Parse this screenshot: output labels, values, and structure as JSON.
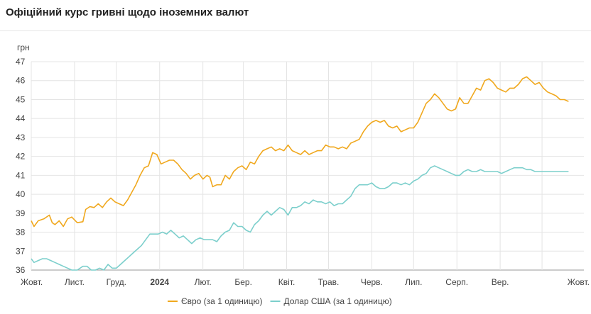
{
  "title": "Офіційний курс гривні щодо іноземних валют",
  "chart_data": {
    "type": "line",
    "ylabel": "грн",
    "ylim": [
      36,
      47
    ],
    "yticks": [
      36,
      37,
      38,
      39,
      40,
      41,
      42,
      43,
      44,
      45,
      46,
      47
    ],
    "xlim": [
      "2023-10-01",
      "2024-10-31"
    ],
    "xticks": [
      {
        "label": "Жовт.",
        "date": "2023-10-01",
        "bold": false
      },
      {
        "label": "Лист.",
        "date": "2023-11-01",
        "bold": false
      },
      {
        "label": "Груд.",
        "date": "2023-12-01",
        "bold": false
      },
      {
        "label": "2024",
        "date": "2024-01-01",
        "bold": true
      },
      {
        "label": "Лют.",
        "date": "2024-02-01",
        "bold": false
      },
      {
        "label": "Бер.",
        "date": "2024-03-01",
        "bold": false
      },
      {
        "label": "Квіт.",
        "date": "2024-04-01",
        "bold": false
      },
      {
        "label": "Трав.",
        "date": "2024-05-01",
        "bold": false
      },
      {
        "label": "Черв.",
        "date": "2024-06-01",
        "bold": false
      },
      {
        "label": "Лип.",
        "date": "2024-07-01",
        "bold": false
      },
      {
        "label": "Серп.",
        "date": "2024-08-01",
        "bold": false
      },
      {
        "label": "Вер.",
        "date": "2024-09-01",
        "bold": false
      },
      {
        "label": "Жовт.",
        "date": "2024-10-01",
        "bold": false
      }
    ],
    "grid": true,
    "legend_position": "bottom",
    "series": [
      {
        "name": "Євро (за 1 одиницю)",
        "color": "#f0a81e",
        "points": [
          [
            "2023-10-01",
            38.6
          ],
          [
            "2023-10-03",
            38.3
          ],
          [
            "2023-10-06",
            38.6
          ],
          [
            "2023-10-10",
            38.7
          ],
          [
            "2023-10-14",
            38.9
          ],
          [
            "2023-10-16",
            38.5
          ],
          [
            "2023-10-18",
            38.4
          ],
          [
            "2023-10-21",
            38.6
          ],
          [
            "2023-10-24",
            38.3
          ],
          [
            "2023-10-27",
            38.7
          ],
          [
            "2023-10-30",
            38.8
          ],
          [
            "2023-11-03",
            38.5
          ],
          [
            "2023-11-07",
            38.55
          ],
          [
            "2023-11-09",
            39.2
          ],
          [
            "2023-11-12",
            39.35
          ],
          [
            "2023-11-15",
            39.3
          ],
          [
            "2023-11-18",
            39.5
          ],
          [
            "2023-11-21",
            39.3
          ],
          [
            "2023-11-24",
            39.6
          ],
          [
            "2023-11-27",
            39.8
          ],
          [
            "2023-11-30",
            39.6
          ],
          [
            "2023-12-03",
            39.5
          ],
          [
            "2023-12-06",
            39.4
          ],
          [
            "2023-12-09",
            39.7
          ],
          [
            "2023-12-12",
            40.1
          ],
          [
            "2023-12-15",
            40.5
          ],
          [
            "2023-12-18",
            41.0
          ],
          [
            "2023-12-21",
            41.4
          ],
          [
            "2023-12-24",
            41.5
          ],
          [
            "2023-12-27",
            42.2
          ],
          [
            "2023-12-30",
            42.1
          ],
          [
            "2024-01-02",
            41.6
          ],
          [
            "2024-01-05",
            41.7
          ],
          [
            "2024-01-08",
            41.8
          ],
          [
            "2024-01-11",
            41.8
          ],
          [
            "2024-01-14",
            41.6
          ],
          [
            "2024-01-17",
            41.3
          ],
          [
            "2024-01-20",
            41.1
          ],
          [
            "2024-01-23",
            40.8
          ],
          [
            "2024-01-26",
            41.0
          ],
          [
            "2024-01-29",
            41.1
          ],
          [
            "2024-02-01",
            40.8
          ],
          [
            "2024-02-04",
            41.0
          ],
          [
            "2024-02-06",
            40.9
          ],
          [
            "2024-02-08",
            40.4
          ],
          [
            "2024-02-11",
            40.5
          ],
          [
            "2024-02-14",
            40.5
          ],
          [
            "2024-02-17",
            41.0
          ],
          [
            "2024-02-20",
            40.8
          ],
          [
            "2024-02-23",
            41.2
          ],
          [
            "2024-02-26",
            41.4
          ],
          [
            "2024-02-29",
            41.5
          ],
          [
            "2024-03-03",
            41.3
          ],
          [
            "2024-03-06",
            41.7
          ],
          [
            "2024-03-09",
            41.6
          ],
          [
            "2024-03-12",
            42.0
          ],
          [
            "2024-03-15",
            42.3
          ],
          [
            "2024-03-18",
            42.4
          ],
          [
            "2024-03-21",
            42.5
          ],
          [
            "2024-03-24",
            42.3
          ],
          [
            "2024-03-27",
            42.4
          ],
          [
            "2024-03-30",
            42.3
          ],
          [
            "2024-04-02",
            42.6
          ],
          [
            "2024-04-05",
            42.3
          ],
          [
            "2024-04-08",
            42.2
          ],
          [
            "2024-04-11",
            42.1
          ],
          [
            "2024-04-14",
            42.3
          ],
          [
            "2024-04-17",
            42.1
          ],
          [
            "2024-04-20",
            42.2
          ],
          [
            "2024-04-23",
            42.3
          ],
          [
            "2024-04-26",
            42.3
          ],
          [
            "2024-04-29",
            42.6
          ],
          [
            "2024-05-02",
            42.5
          ],
          [
            "2024-05-05",
            42.5
          ],
          [
            "2024-05-08",
            42.4
          ],
          [
            "2024-05-11",
            42.5
          ],
          [
            "2024-05-14",
            42.4
          ],
          [
            "2024-05-17",
            42.7
          ],
          [
            "2024-05-20",
            42.8
          ],
          [
            "2024-05-23",
            42.9
          ],
          [
            "2024-05-26",
            43.3
          ],
          [
            "2024-05-29",
            43.6
          ],
          [
            "2024-06-01",
            43.8
          ],
          [
            "2024-06-04",
            43.9
          ],
          [
            "2024-06-07",
            43.8
          ],
          [
            "2024-06-10",
            43.9
          ],
          [
            "2024-06-13",
            43.6
          ],
          [
            "2024-06-16",
            43.5
          ],
          [
            "2024-06-19",
            43.6
          ],
          [
            "2024-06-22",
            43.3
          ],
          [
            "2024-06-25",
            43.4
          ],
          [
            "2024-06-28",
            43.5
          ],
          [
            "2024-07-01",
            43.5
          ],
          [
            "2024-07-04",
            43.8
          ],
          [
            "2024-07-07",
            44.3
          ],
          [
            "2024-07-10",
            44.8
          ],
          [
            "2024-07-13",
            45.0
          ],
          [
            "2024-07-16",
            45.3
          ],
          [
            "2024-07-19",
            45.1
          ],
          [
            "2024-07-22",
            44.8
          ],
          [
            "2024-07-25",
            44.5
          ],
          [
            "2024-07-28",
            44.4
          ],
          [
            "2024-07-31",
            44.5
          ],
          [
            "2024-08-03",
            45.1
          ],
          [
            "2024-08-06",
            44.8
          ],
          [
            "2024-08-09",
            44.8
          ],
          [
            "2024-08-12",
            45.2
          ],
          [
            "2024-08-15",
            45.6
          ],
          [
            "2024-08-18",
            45.5
          ],
          [
            "2024-08-21",
            46.0
          ],
          [
            "2024-08-24",
            46.1
          ],
          [
            "2024-08-27",
            45.9
          ],
          [
            "2024-08-30",
            45.6
          ],
          [
            "2024-09-02",
            45.5
          ],
          [
            "2024-09-05",
            45.4
          ],
          [
            "2024-09-08",
            45.6
          ],
          [
            "2024-09-11",
            45.6
          ],
          [
            "2024-09-14",
            45.8
          ],
          [
            "2024-09-17",
            46.1
          ],
          [
            "2024-09-20",
            46.2
          ],
          [
            "2024-09-23",
            46.0
          ],
          [
            "2024-09-26",
            45.8
          ],
          [
            "2024-09-29",
            45.9
          ],
          [
            "2024-10-02",
            45.6
          ],
          [
            "2024-10-05",
            45.4
          ],
          [
            "2024-10-08",
            45.3
          ],
          [
            "2024-10-11",
            45.2
          ],
          [
            "2024-10-14",
            45.0
          ],
          [
            "2024-10-17",
            45.0
          ],
          [
            "2024-10-20",
            44.9
          ]
        ]
      },
      {
        "name": "Долар США (за 1 одиницю)",
        "color": "#7ccfcc",
        "points": [
          [
            "2023-10-01",
            36.6
          ],
          [
            "2023-10-03",
            36.4
          ],
          [
            "2023-10-06",
            36.5
          ],
          [
            "2023-10-09",
            36.6
          ],
          [
            "2023-10-12",
            36.6
          ],
          [
            "2023-10-15",
            36.5
          ],
          [
            "2023-10-18",
            36.4
          ],
          [
            "2023-10-21",
            36.3
          ],
          [
            "2023-10-24",
            36.2
          ],
          [
            "2023-10-27",
            36.1
          ],
          [
            "2023-10-30",
            36.0
          ],
          [
            "2023-11-03",
            36.0
          ],
          [
            "2023-11-07",
            36.2
          ],
          [
            "2023-11-10",
            36.2
          ],
          [
            "2023-11-13",
            36.0
          ],
          [
            "2023-11-16",
            36.0
          ],
          [
            "2023-11-19",
            36.1
          ],
          [
            "2023-11-22",
            36.0
          ],
          [
            "2023-11-25",
            36.3
          ],
          [
            "2023-11-28",
            36.1
          ],
          [
            "2023-12-01",
            36.1
          ],
          [
            "2023-12-04",
            36.3
          ],
          [
            "2023-12-07",
            36.5
          ],
          [
            "2023-12-10",
            36.7
          ],
          [
            "2023-12-13",
            36.9
          ],
          [
            "2023-12-16",
            37.1
          ],
          [
            "2023-12-19",
            37.3
          ],
          [
            "2023-12-22",
            37.6
          ],
          [
            "2023-12-25",
            37.9
          ],
          [
            "2023-12-28",
            37.9
          ],
          [
            "2023-12-31",
            37.9
          ],
          [
            "2024-01-03",
            38.0
          ],
          [
            "2024-01-06",
            37.9
          ],
          [
            "2024-01-09",
            38.1
          ],
          [
            "2024-01-12",
            37.9
          ],
          [
            "2024-01-15",
            37.7
          ],
          [
            "2024-01-18",
            37.8
          ],
          [
            "2024-01-21",
            37.6
          ],
          [
            "2024-01-24",
            37.4
          ],
          [
            "2024-01-27",
            37.6
          ],
          [
            "2024-01-30",
            37.7
          ],
          [
            "2024-02-02",
            37.6
          ],
          [
            "2024-02-05",
            37.6
          ],
          [
            "2024-02-08",
            37.6
          ],
          [
            "2024-02-11",
            37.5
          ],
          [
            "2024-02-14",
            37.8
          ],
          [
            "2024-02-17",
            38.0
          ],
          [
            "2024-02-20",
            38.1
          ],
          [
            "2024-02-23",
            38.5
          ],
          [
            "2024-02-26",
            38.3
          ],
          [
            "2024-02-29",
            38.3
          ],
          [
            "2024-03-03",
            38.1
          ],
          [
            "2024-03-06",
            38.0
          ],
          [
            "2024-03-09",
            38.4
          ],
          [
            "2024-03-12",
            38.6
          ],
          [
            "2024-03-15",
            38.9
          ],
          [
            "2024-03-18",
            39.1
          ],
          [
            "2024-03-21",
            38.9
          ],
          [
            "2024-03-24",
            39.1
          ],
          [
            "2024-03-27",
            39.3
          ],
          [
            "2024-03-30",
            39.2
          ],
          [
            "2024-04-02",
            38.9
          ],
          [
            "2024-04-05",
            39.3
          ],
          [
            "2024-04-08",
            39.3
          ],
          [
            "2024-04-11",
            39.4
          ],
          [
            "2024-04-14",
            39.6
          ],
          [
            "2024-04-17",
            39.5
          ],
          [
            "2024-04-20",
            39.7
          ],
          [
            "2024-04-23",
            39.6
          ],
          [
            "2024-04-26",
            39.6
          ],
          [
            "2024-04-29",
            39.5
          ],
          [
            "2024-05-02",
            39.6
          ],
          [
            "2024-05-05",
            39.4
          ],
          [
            "2024-05-08",
            39.5
          ],
          [
            "2024-05-11",
            39.5
          ],
          [
            "2024-05-14",
            39.7
          ],
          [
            "2024-05-17",
            39.9
          ],
          [
            "2024-05-20",
            40.3
          ],
          [
            "2024-05-23",
            40.5
          ],
          [
            "2024-05-26",
            40.5
          ],
          [
            "2024-05-29",
            40.5
          ],
          [
            "2024-06-01",
            40.6
          ],
          [
            "2024-06-04",
            40.4
          ],
          [
            "2024-06-07",
            40.3
          ],
          [
            "2024-06-10",
            40.3
          ],
          [
            "2024-06-13",
            40.4
          ],
          [
            "2024-06-16",
            40.6
          ],
          [
            "2024-06-19",
            40.6
          ],
          [
            "2024-06-22",
            40.5
          ],
          [
            "2024-06-25",
            40.6
          ],
          [
            "2024-06-28",
            40.5
          ],
          [
            "2024-07-01",
            40.7
          ],
          [
            "2024-07-04",
            40.8
          ],
          [
            "2024-07-07",
            41.0
          ],
          [
            "2024-07-10",
            41.1
          ],
          [
            "2024-07-13",
            41.4
          ],
          [
            "2024-07-16",
            41.5
          ],
          [
            "2024-07-19",
            41.4
          ],
          [
            "2024-07-22",
            41.3
          ],
          [
            "2024-07-25",
            41.2
          ],
          [
            "2024-07-28",
            41.1
          ],
          [
            "2024-07-31",
            41.0
          ],
          [
            "2024-08-03",
            41.0
          ],
          [
            "2024-08-06",
            41.2
          ],
          [
            "2024-08-09",
            41.3
          ],
          [
            "2024-08-12",
            41.2
          ],
          [
            "2024-08-15",
            41.2
          ],
          [
            "2024-08-18",
            41.3
          ],
          [
            "2024-08-21",
            41.2
          ],
          [
            "2024-08-24",
            41.2
          ],
          [
            "2024-08-27",
            41.2
          ],
          [
            "2024-08-30",
            41.2
          ],
          [
            "2024-09-02",
            41.1
          ],
          [
            "2024-09-05",
            41.2
          ],
          [
            "2024-09-08",
            41.3
          ],
          [
            "2024-09-11",
            41.4
          ],
          [
            "2024-09-14",
            41.4
          ],
          [
            "2024-09-17",
            41.4
          ],
          [
            "2024-09-20",
            41.3
          ],
          [
            "2024-09-23",
            41.3
          ],
          [
            "2024-09-26",
            41.2
          ],
          [
            "2024-09-29",
            41.2
          ],
          [
            "2024-10-02",
            41.2
          ],
          [
            "2024-10-05",
            41.2
          ],
          [
            "2024-10-08",
            41.2
          ],
          [
            "2024-10-11",
            41.2
          ],
          [
            "2024-10-14",
            41.2
          ],
          [
            "2024-10-17",
            41.2
          ],
          [
            "2024-10-20",
            41.2
          ]
        ]
      }
    ]
  }
}
